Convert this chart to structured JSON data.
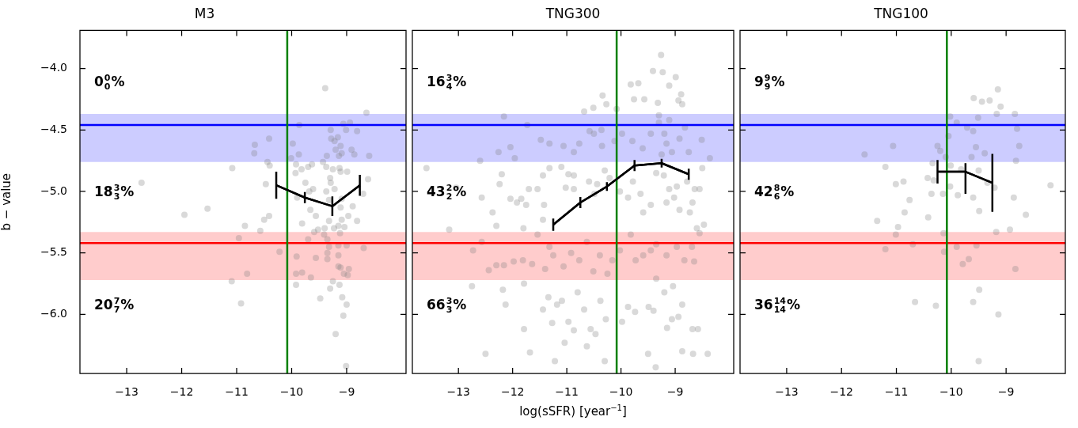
{
  "chart_data": [
    {
      "type": "scatter",
      "title": "M3",
      "ylabel": "b − value",
      "xlim": [
        -13.85,
        -7.92
      ],
      "ylim": [
        -6.48,
        -3.69
      ],
      "xticks": [
        {
          "value": -13,
          "label": "−13"
        },
        {
          "value": -12,
          "label": "−12"
        },
        {
          "value": -11,
          "label": "−11"
        },
        {
          "value": -10,
          "label": "−10"
        },
        {
          "value": -9,
          "label": "−9"
        }
      ],
      "yticks": [
        {
          "value": -6,
          "label": "−6.0"
        },
        {
          "value": -5.5,
          "label": "−5.5"
        },
        {
          "value": -5,
          "label": "−5.0"
        },
        {
          "value": -4.5,
          "label": "−4.5"
        },
        {
          "value": -4,
          "label": "−4.0"
        }
      ],
      "bands": [
        {
          "axis": "y",
          "from": -4.76,
          "to": -4.37,
          "color": "#ccccff"
        },
        {
          "axis": "y",
          "from": -5.72,
          "to": -5.33,
          "color": "#ffcccc"
        }
      ],
      "ref_lines": [
        {
          "axis": "y",
          "value": -4.46,
          "color": "#0000ff"
        },
        {
          "axis": "y",
          "value": -5.42,
          "color": "#ff0000"
        },
        {
          "axis": "x",
          "value": -10.08,
          "color": "#008000"
        }
      ],
      "annotations": [
        "0$^{0}$$_{0}$%",
        "18$^{3}$$_{3}$%",
        "20$^{7}$$_{7}$%"
      ],
      "series": [
        {
          "type": "scatter",
          "color": "#808080",
          "x": [
            -9.39,
            -12.73,
            -11.95,
            -11.53,
            -11.08,
            -10.67,
            -10.68,
            -10.41,
            -10.44,
            -10.4,
            -10.47,
            -10.41,
            -10.5,
            -10.57,
            -10.85,
            -10.96,
            -10.22,
            -10.81,
            -11.09,
            -10.92,
            -9.98,
            -10.01,
            -9.87,
            -9.86,
            -9.92,
            -9.93,
            -9.82,
            -9.7,
            -9.63,
            -9.75,
            -9.68,
            -9.61,
            -9.9,
            -9.81,
            -9.66,
            -9.56,
            -9.59,
            -9.7,
            -9.91,
            -9.92,
            -9.92,
            -9.81,
            -9.65,
            -9.56,
            -9.48,
            -9.43,
            -9.36,
            -9.29,
            -9.28,
            -9.22,
            -9.16,
            -9.11,
            -9.09,
            -9.2,
            -9.14,
            -9.06,
            -9.01,
            -8.94,
            -8.81,
            -8.91,
            -8.86,
            -8.64,
            -8.59,
            -8.61,
            -8.7,
            -9.3,
            -9.29,
            -9.37,
            -9.25,
            -9.13,
            -9.11,
            -8.99,
            -9.37,
            -9.22,
            -9.32,
            -9.09,
            -8.89,
            -9.11,
            -8.97,
            -8.81,
            -9.09,
            -9.32,
            -9.15,
            -9.04,
            -9.23,
            -9.4,
            -9.12,
            -9.41,
            -9.35,
            -9.32,
            -9.15,
            -9.0,
            -8.69,
            -9.35,
            -9.15,
            -9.35,
            -9.15,
            -9.11,
            -8.96,
            -9.05,
            -8.98,
            -9.25,
            -9.3,
            -9.13,
            -9.08,
            -9.0,
            -9.06,
            -9.2,
            -9.01,
            -9.52
          ],
          "values": [
            -4.16,
            -4.93,
            -5.19,
            -5.14,
            -4.81,
            -4.62,
            -4.69,
            -4.57,
            -4.76,
            -4.79,
            -4.94,
            -5.2,
            -5.23,
            -5.32,
            -5.28,
            -5.38,
            -5.49,
            -5.67,
            -5.73,
            -5.91,
            -4.61,
            -4.73,
            -4.7,
            -4.46,
            -4.78,
            -4.85,
            -4.82,
            -4.8,
            -4.78,
            -4.93,
            -5.0,
            -4.98,
            -5.05,
            -5.26,
            -5.15,
            -5.2,
            -5.33,
            -5.39,
            -5.53,
            -5.67,
            -5.76,
            -5.66,
            -5.7,
            -5.54,
            -5.87,
            -4.76,
            -4.71,
            -4.5,
            -4.57,
            -4.59,
            -4.56,
            -4.63,
            -4.69,
            -4.66,
            -4.71,
            -4.45,
            -4.5,
            -4.44,
            -4.51,
            -4.66,
            -4.7,
            -4.36,
            -4.71,
            -4.9,
            -5.02,
            -4.89,
            -4.93,
            -4.8,
            -4.82,
            -4.81,
            -4.84,
            -4.84,
            -5.0,
            -4.98,
            -5.07,
            -5.06,
            -5.12,
            -5.13,
            -5.2,
            -5.24,
            -5.23,
            -5.24,
            -5.28,
            -5.29,
            -5.3,
            -5.3,
            -5.34,
            -5.35,
            -5.39,
            -5.45,
            -5.44,
            -5.44,
            -5.46,
            -5.5,
            -5.52,
            -5.55,
            -5.61,
            -5.62,
            -5.63,
            -5.67,
            -5.68,
            -5.73,
            -5.79,
            -5.76,
            -5.86,
            -5.92,
            -6.01,
            -6.16,
            -6.42,
            -5.31
          ]
        },
        {
          "type": "line",
          "color": "#000000",
          "marker": "none",
          "x": [
            -10.28,
            -9.76,
            -9.26,
            -8.76
          ],
          "values": [
            -4.95,
            -5.05,
            -5.12,
            -4.95
          ],
          "errors": [
            0.11,
            0.045,
            0.08,
            0.085
          ]
        }
      ]
    },
    {
      "type": "scatter",
      "title": "TNG300",
      "xlabel": "log(sSFR) [year$^{−1}$]",
      "tick_labels": "x",
      "xlim": [
        -13.85,
        -7.92
      ],
      "ylim": [
        -6.48,
        -3.69
      ],
      "xticks": [
        {
          "value": -13,
          "label": "−13"
        },
        {
          "value": -12,
          "label": "−12"
        },
        {
          "value": -11,
          "label": "−11"
        },
        {
          "value": -10,
          "label": "−10"
        },
        {
          "value": -9,
          "label": "−9"
        }
      ],
      "yticks": [
        -6,
        -5.5,
        -5,
        -4.5,
        -4
      ],
      "bands": [
        {
          "axis": "y",
          "from": -4.76,
          "to": -4.37,
          "color": "#ccccff"
        },
        {
          "axis": "y",
          "from": -5.72,
          "to": -5.33,
          "color": "#ffcccc"
        }
      ],
      "ref_lines": [
        {
          "axis": "y",
          "value": -4.46,
          "color": "#0000ff"
        },
        {
          "axis": "y",
          "value": -5.42,
          "color": "#ff0000"
        },
        {
          "axis": "x",
          "value": -10.08,
          "color": "#008000"
        }
      ],
      "annotations": [
        "16$^{3}$$_{4}$%",
        "43$^{2}$$_{2}$%",
        "66$^{3}$$_{3}$%"
      ],
      "series": [
        {
          "type": "scatter",
          "color": "#808080",
          "x": [
            -9.26,
            -9.41,
            -9.23,
            -8.99,
            -9.82,
            -9.68,
            -10.34,
            -9.11,
            -8.89,
            -8.94,
            -9.76,
            -9.57,
            -9.32,
            -8.87,
            -10.68,
            -10.51,
            -10.27,
            -10.08,
            -12.16,
            -11.73,
            -12.04,
            -12.26,
            -11.96,
            -12.6,
            -11.48,
            -11.32,
            -11.06,
            -10.87,
            -10.58,
            -10.77,
            -10.35,
            -10.5,
            -10.36,
            -10.12,
            -9.98,
            -9.79,
            -9.6,
            -9.45,
            -9.3,
            -9.2,
            -9.16,
            -9.06,
            -9.25,
            -8.92,
            -8.82,
            -8.75,
            -8.51,
            -8.36,
            -9.3,
            -9.11,
            -13.59,
            -13.04,
            -12.2,
            -12.24,
            -12.57,
            -12.04,
            -11.92,
            -11.84,
            -11.75,
            -11.7,
            -11.54,
            -11.44,
            -11.32,
            -11.1,
            -10.97,
            -10.87,
            -11.02,
            -10.87,
            -10.59,
            -10.44,
            -10.49,
            -10.3,
            -10.21,
            -10.02,
            -9.87,
            -9.78,
            -9.64,
            -9.59,
            -9.45,
            -9.35,
            -9.21,
            -9.11,
            -9.02,
            -9.16,
            -8.92,
            -8.97,
            -8.78,
            -8.64,
            -8.68,
            -8.73,
            -8.5,
            -8.55,
            -12.37,
            -12.3,
            -13.17,
            -12.57,
            -12.73,
            -12.44,
            -12.3,
            -12.16,
            -11.98,
            -11.81,
            -11.64,
            -11.8,
            -11.54,
            -11.42,
            -11.44,
            -11.32,
            -11.4,
            -11.25,
            -11.06,
            -10.92,
            -10.77,
            -10.63,
            -10.51,
            -10.39,
            -10.25,
            -10.16,
            -10.02,
            -9.82,
            -9.73,
            -9.59,
            -9.45,
            -9.35,
            -9.16,
            -8.97,
            -8.83,
            -8.69,
            -8.6,
            -8.47,
            -8.55,
            -8.65,
            -12.75,
            -12.18,
            -12.13,
            -11.79,
            -11.44,
            -11.34,
            -11.27,
            -11.18,
            -11.09,
            -11.04,
            -10.97,
            -10.87,
            -10.8,
            -10.68,
            -10.63,
            -10.56,
            -10.47,
            -10.38,
            -10.28,
            -10.3,
            -9.98,
            -9.87,
            -9.74,
            -9.5,
            -9.49,
            -9.4,
            -9.36,
            -9.2,
            -9.15,
            -9.06,
            -8.94,
            -8.87,
            -8.87,
            -8.68,
            -8.58,
            -8.4,
            -8.67,
            -12.5,
            -11.79,
            -11.68,
            -11.22,
            -9.04,
            -9.35
          ],
          "values": [
            -3.89,
            -4.02,
            -4.03,
            -4.07,
            -4.13,
            -4.12,
            -4.22,
            -4.14,
            -4.21,
            -4.26,
            -4.25,
            -4.25,
            -4.28,
            -4.29,
            -4.35,
            -4.32,
            -4.29,
            -4.33,
            -4.39,
            -4.46,
            -4.64,
            -4.68,
            -4.73,
            -4.75,
            -4.58,
            -4.61,
            -4.63,
            -4.68,
            -4.51,
            -4.61,
            -4.63,
            -4.53,
            -4.5,
            -4.59,
            -4.53,
            -4.59,
            -4.65,
            -4.53,
            -4.44,
            -4.53,
            -4.61,
            -4.68,
            -4.7,
            -4.57,
            -4.48,
            -4.68,
            -4.58,
            -4.73,
            -4.38,
            -4.42,
            -4.81,
            -4.97,
            -4.86,
            -4.94,
            -5.05,
            -5.06,
            -5.09,
            -5.06,
            -5.11,
            -4.98,
            -4.98,
            -4.87,
            -4.81,
            -4.8,
            -4.86,
            -4.87,
            -4.97,
            -4.98,
            -4.92,
            -4.94,
            -5.02,
            -4.83,
            -4.89,
            -5.0,
            -5.05,
            -4.92,
            -5.02,
            -5.17,
            -5.11,
            -4.85,
            -4.87,
            -4.98,
            -5.05,
            -5.09,
            -5.15,
            -4.96,
            -4.92,
            -4.98,
            -5.09,
            -5.17,
            -4.81,
            -4.98,
            -5.17,
            -5.28,
            -5.31,
            -5.41,
            -5.48,
            -5.64,
            -5.6,
            -5.6,
            -5.57,
            -5.56,
            -5.59,
            -5.3,
            -5.35,
            -5.11,
            -5.23,
            -5.45,
            -5.63,
            -5.52,
            -5.61,
            -5.5,
            -5.56,
            -5.41,
            -5.65,
            -5.52,
            -5.67,
            -5.56,
            -5.48,
            -5.35,
            -5.56,
            -5.52,
            -5.48,
            -5.43,
            -5.52,
            -5.45,
            -5.56,
            -5.45,
            -5.3,
            -5.27,
            -5.34,
            -5.57,
            -5.77,
            -5.8,
            -5.92,
            -5.75,
            -5.96,
            -5.86,
            -6.07,
            -5.92,
            -5.89,
            -6.23,
            -6.06,
            -6.13,
            -5.82,
            -5.96,
            -6.26,
            -6.12,
            -6.16,
            -5.89,
            -6.04,
            -6.38,
            -6.06,
            -5.94,
            -5.98,
            -6.32,
            -5.94,
            -5.97,
            -6.43,
            -5.82,
            -6.11,
            -6.04,
            -6.02,
            -5.92,
            -6.3,
            -6.12,
            -6.12,
            -6.32,
            -6.32,
            -6.32,
            -6.12,
            -6.31,
            -6.38,
            -5.77,
            -5.71
          ]
        },
        {
          "type": "line",
          "color": "#000000",
          "marker": "none",
          "x": [
            -11.25,
            -10.75,
            -10.26,
            -9.75,
            -9.25,
            -8.75
          ],
          "values": [
            -5.27,
            -5.09,
            -4.96,
            -4.79,
            -4.77,
            -4.86
          ],
          "errors": [
            0.05,
            0.045,
            0.035,
            0.045,
            0.035,
            0.045
          ]
        }
      ]
    },
    {
      "type": "scatter",
      "title": "TNG100",
      "tick_labels": "x",
      "xlim": [
        -13.85,
        -7.92
      ],
      "ylim": [
        -6.48,
        -3.69
      ],
      "xticks": [
        {
          "value": -13,
          "label": "−13"
        },
        {
          "value": -12,
          "label": "−12"
        },
        {
          "value": -11,
          "label": "−11"
        },
        {
          "value": -10,
          "label": "−10"
        },
        {
          "value": -9,
          "label": "−9"
        }
      ],
      "yticks": [
        -6,
        -5.5,
        -5,
        -4.5,
        -4
      ],
      "bands": [
        {
          "axis": "y",
          "from": -4.76,
          "to": -4.37,
          "color": "#ccccff"
        },
        {
          "axis": "y",
          "from": -5.72,
          "to": -5.33,
          "color": "#ffcccc"
        }
      ],
      "ref_lines": [
        {
          "axis": "y",
          "value": -4.46,
          "color": "#0000ff"
        },
        {
          "axis": "y",
          "value": -5.42,
          "color": "#ff0000"
        },
        {
          "axis": "x",
          "value": -10.08,
          "color": "#008000"
        }
      ],
      "annotations": [
        "9$^{9}$$_{9}$%",
        "42$^{8}$$_{6}$%",
        "36$^{14}$$_{14}$%"
      ],
      "series": [
        {
          "type": "scatter",
          "color": "#808080",
          "x": [
            -9.15,
            -9.59,
            -9.44,
            -9.3,
            -9.1,
            -9.17,
            -8.84,
            -8.8,
            -9.51,
            -10.02,
            -9.9,
            -9.71,
            -9.6,
            -10.05,
            -9.55,
            -8.76,
            -9.39,
            -9.63,
            -8.82,
            -11.06,
            -11.58,
            -10.25,
            -10.2,
            -10.1,
            -10.34,
            -10.01,
            -11.2,
            -9.82,
            -9.5,
            -10.43,
            -10.32,
            -10.87,
            -11.01,
            -9.34,
            -9.21,
            -10.02,
            -10.36,
            -10.15,
            -9.88,
            -9.6,
            -8.86,
            -8.19,
            -10.76,
            -10.85,
            -9.49,
            -10.42,
            -11.35,
            -8.64,
            -10.97,
            -9.18,
            -8.93,
            -10.14,
            -11.01,
            -10.7,
            -9.9,
            -9.54,
            -11.2,
            -10.13,
            -9.68,
            -9.79,
            -8.83,
            -9.49,
            -9.6,
            -10.66,
            -10.28,
            -9.14,
            -9.5
          ],
          "values": [
            -4.17,
            -4.24,
            -4.27,
            -4.26,
            -4.31,
            -4.37,
            -4.37,
            -4.49,
            -4.4,
            -4.39,
            -4.44,
            -4.48,
            -4.51,
            -4.55,
            -4.64,
            -4.63,
            -4.69,
            -4.72,
            -4.75,
            -4.63,
            -4.7,
            -4.63,
            -4.67,
            -4.72,
            -4.77,
            -4.79,
            -4.8,
            -4.82,
            -4.83,
            -4.89,
            -4.91,
            -4.92,
            -4.94,
            -4.93,
            -4.97,
            -4.96,
            -5.02,
            -5.02,
            -5.03,
            -5.05,
            -5.05,
            -4.95,
            -5.07,
            -5.17,
            -5.16,
            -5.21,
            -5.24,
            -5.19,
            -5.29,
            -5.33,
            -5.31,
            -5.34,
            -5.35,
            -5.43,
            -5.45,
            -5.44,
            -5.47,
            -5.49,
            -5.55,
            -5.59,
            -5.63,
            -5.8,
            -5.9,
            -5.9,
            -5.93,
            -6.0,
            -6.38
          ]
        },
        {
          "type": "line",
          "color": "#000000",
          "marker": "none",
          "x": [
            -10.25,
            -9.74,
            -9.25
          ],
          "values": [
            -4.84,
            -4.84,
            -4.93
          ],
          "errors": [
            0.095,
            [
              -5.02,
              -4.77
            ],
            0.235
          ]
        }
      ]
    }
  ]
}
